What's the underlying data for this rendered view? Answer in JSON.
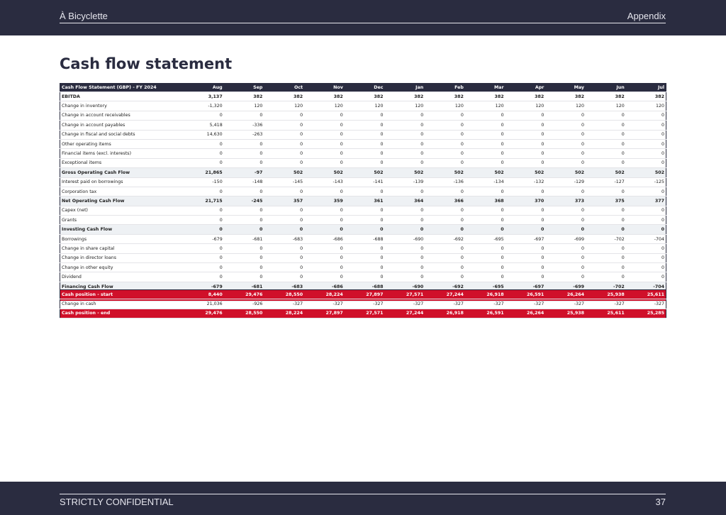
{
  "header": {
    "left": "À Bicyclette",
    "right": "Appendix"
  },
  "title": "Cash flow statement",
  "table": {
    "header": [
      "Cash Flow Statement (GBP) - FY 2024",
      "Aug",
      "Sep",
      "Oct",
      "Nov",
      "Dec",
      "Jan",
      "Feb",
      "Mar",
      "Apr",
      "May",
      "Jun",
      "Jul"
    ],
    "rows": [
      [
        "EBITDA",
        "3,137",
        "382",
        "382",
        "382",
        "382",
        "382",
        "382",
        "382",
        "382",
        "382",
        "382",
        "382"
      ],
      [
        "Change in inventory",
        "-1,320",
        "120",
        "120",
        "120",
        "120",
        "120",
        "120",
        "120",
        "120",
        "120",
        "120",
        "120"
      ],
      [
        "Change in account receivables",
        "0",
        "0",
        "0",
        "0",
        "0",
        "0",
        "0",
        "0",
        "0",
        "0",
        "0",
        "0"
      ],
      [
        "Change in account payables",
        "5,418",
        "-336",
        "0",
        "0",
        "0",
        "0",
        "0",
        "0",
        "0",
        "0",
        "0",
        "0"
      ],
      [
        "Change in fiscal and social debts",
        "14,630",
        "-263",
        "0",
        "0",
        "0",
        "0",
        "0",
        "0",
        "0",
        "0",
        "0",
        "0"
      ],
      [
        "Other operating items",
        "0",
        "0",
        "0",
        "0",
        "0",
        "0",
        "0",
        "0",
        "0",
        "0",
        "0",
        "0"
      ],
      [
        "Financial items (excl. interests)",
        "0",
        "0",
        "0",
        "0",
        "0",
        "0",
        "0",
        "0",
        "0",
        "0",
        "0",
        "0"
      ],
      [
        "Exceptional items",
        "0",
        "0",
        "0",
        "0",
        "0",
        "0",
        "0",
        "0",
        "0",
        "0",
        "0",
        "0"
      ],
      [
        "Gross Operating Cash Flow",
        "21,865",
        "-97",
        "502",
        "502",
        "502",
        "502",
        "502",
        "502",
        "502",
        "502",
        "502",
        "502"
      ],
      [
        "Interest paid on borrowings",
        "-150",
        "-148",
        "-145",
        "-143",
        "-141",
        "-139",
        "-136",
        "-134",
        "-132",
        "-129",
        "-127",
        "-125"
      ],
      [
        "Corporation tax",
        "0",
        "0",
        "0",
        "0",
        "0",
        "0",
        "0",
        "0",
        "0",
        "0",
        "0",
        "0"
      ],
      [
        "Net Operating Cash Flow",
        "21,715",
        "-245",
        "357",
        "359",
        "361",
        "364",
        "366",
        "368",
        "370",
        "373",
        "375",
        "377"
      ],
      [
        "Capex (net)",
        "0",
        "0",
        "0",
        "0",
        "0",
        "0",
        "0",
        "0",
        "0",
        "0",
        "0",
        "0"
      ],
      [
        "Grants",
        "0",
        "0",
        "0",
        "0",
        "0",
        "0",
        "0",
        "0",
        "0",
        "0",
        "0",
        "0"
      ],
      [
        "Investing Cash Flow",
        "0",
        "0",
        "0",
        "0",
        "0",
        "0",
        "0",
        "0",
        "0",
        "0",
        "0",
        "0"
      ],
      [
        "Borrowings",
        "-679",
        "-681",
        "-683",
        "-686",
        "-688",
        "-690",
        "-692",
        "-695",
        "-697",
        "-699",
        "-702",
        "-704"
      ],
      [
        "Change in share capital",
        "0",
        "0",
        "0",
        "0",
        "0",
        "0",
        "0",
        "0",
        "0",
        "0",
        "0",
        "0"
      ],
      [
        "Change in director loans",
        "0",
        "0",
        "0",
        "0",
        "0",
        "0",
        "0",
        "0",
        "0",
        "0",
        "0",
        "0"
      ],
      [
        "Change in other equity",
        "0",
        "0",
        "0",
        "0",
        "0",
        "0",
        "0",
        "0",
        "0",
        "0",
        "0",
        "0"
      ],
      [
        "Dividend",
        "0",
        "0",
        "0",
        "0",
        "0",
        "0",
        "0",
        "0",
        "0",
        "0",
        "0",
        "0"
      ],
      [
        "Financing Cash Flow",
        "-679",
        "-681",
        "-683",
        "-686",
        "-688",
        "-690",
        "-692",
        "-695",
        "-697",
        "-699",
        "-702",
        "-704"
      ],
      [
        "Change in cash",
        "21,036",
        "-926",
        "-327",
        "-327",
        "-327",
        "-327",
        "-327",
        "-327",
        "-327",
        "-327",
        "-327",
        "-327"
      ]
    ]
  },
  "summary": {
    "rows": [
      [
        "Cash position - start",
        "8,440",
        "29,476",
        "28,550",
        "28,224",
        "27,897",
        "27,571",
        "27,244",
        "26,918",
        "26,591",
        "26,264",
        "25,938",
        "25,611"
      ],
      [
        "Change in cash",
        "21,036",
        "-926",
        "-327",
        "-327",
        "-327",
        "-327",
        "-327",
        "-327",
        "-327",
        "-327",
        "-327",
        "-327"
      ],
      [
        "Cash position - end",
        "29,476",
        "28,550",
        "28,224",
        "27,897",
        "27,571",
        "27,244",
        "26,918",
        "26,591",
        "26,264",
        "25,938",
        "25,611",
        "25,285"
      ]
    ]
  },
  "footer": {
    "left": "STRICTLY CONFIDENTIAL",
    "right": "37"
  }
}
